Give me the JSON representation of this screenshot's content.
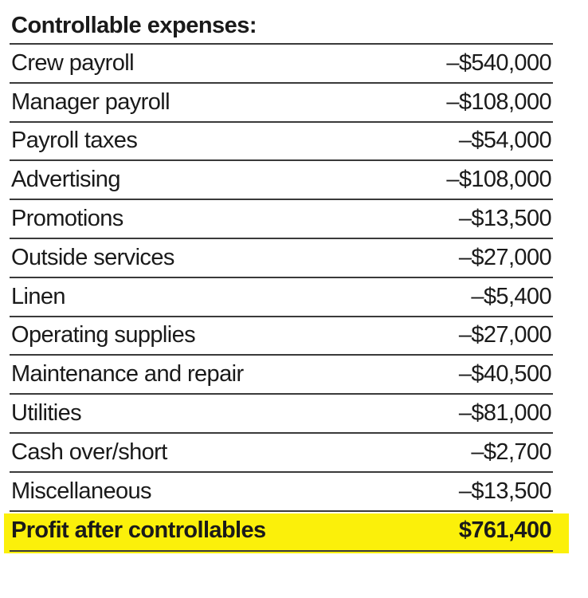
{
  "heading": "Controllable expenses:",
  "rows": [
    {
      "label": "Crew payroll",
      "amount": "–$540,000"
    },
    {
      "label": "Manager payroll",
      "amount": "–$108,000"
    },
    {
      "label": "Payroll taxes",
      "amount": "–$54,000"
    },
    {
      "label": "Advertising",
      "amount": "–$108,000"
    },
    {
      "label": "Promotions",
      "amount": "–$13,500"
    },
    {
      "label": "Outside services",
      "amount": "–$27,000"
    },
    {
      "label": "Linen",
      "amount": "–$5,400"
    },
    {
      "label": "Operating supplies",
      "amount": "–$27,000"
    },
    {
      "label": "Maintenance and repair",
      "amount": "–$40,500"
    },
    {
      "label": "Utilities",
      "amount": "–$81,000"
    },
    {
      "label": "Cash over/short",
      "amount": "–$2,700"
    },
    {
      "label": "Miscellaneous",
      "amount": "–$13,500"
    }
  ],
  "total": {
    "label": "Profit after controllables",
    "amount": "$761,400"
  },
  "colors": {
    "highlight": "#fbf00a",
    "rule": "#3a3a3a",
    "text": "#1a1a1a"
  }
}
